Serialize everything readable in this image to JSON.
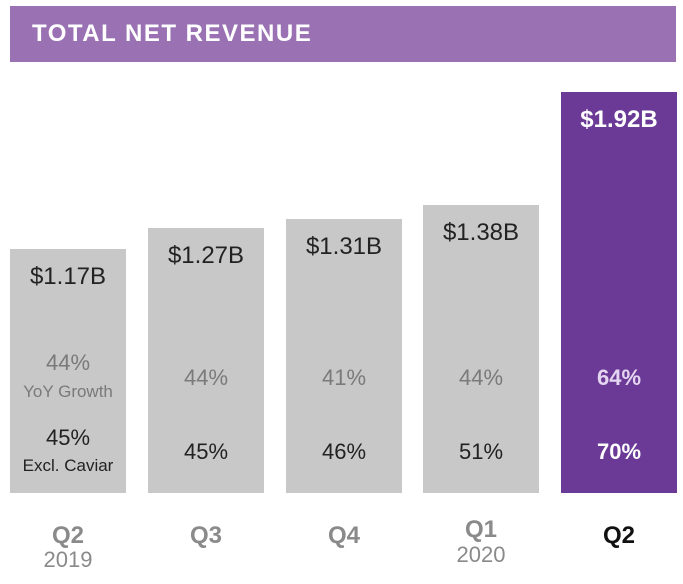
{
  "chart_data": {
    "type": "bar",
    "title": "TOTAL NET REVENUE",
    "categories": [
      "Q2",
      "Q3",
      "Q4",
      "Q1",
      "Q2"
    ],
    "years": [
      "2019",
      "",
      "",
      "2020",
      ""
    ],
    "values": [
      1.17,
      1.27,
      1.31,
      1.38,
      1.92
    ],
    "value_labels": [
      "$1.17B",
      "$1.27B",
      "$1.31B",
      "$1.38B",
      "$1.92B"
    ],
    "yoy_growth": [
      "44%",
      "44%",
      "41%",
      "44%",
      "64%"
    ],
    "yoy_growth_label": "YoY Growth",
    "excl_caviar": [
      "45%",
      "45%",
      "46%",
      "51%",
      "70%"
    ],
    "excl_caviar_label": "Excl. Caviar",
    "highlight_index": 4,
    "ylim": [
      0,
      1.92
    ],
    "grid": false,
    "colors": {
      "header": "#9a72b4",
      "bar": "#c8c8c8",
      "highlight": "#6a3a96"
    }
  }
}
